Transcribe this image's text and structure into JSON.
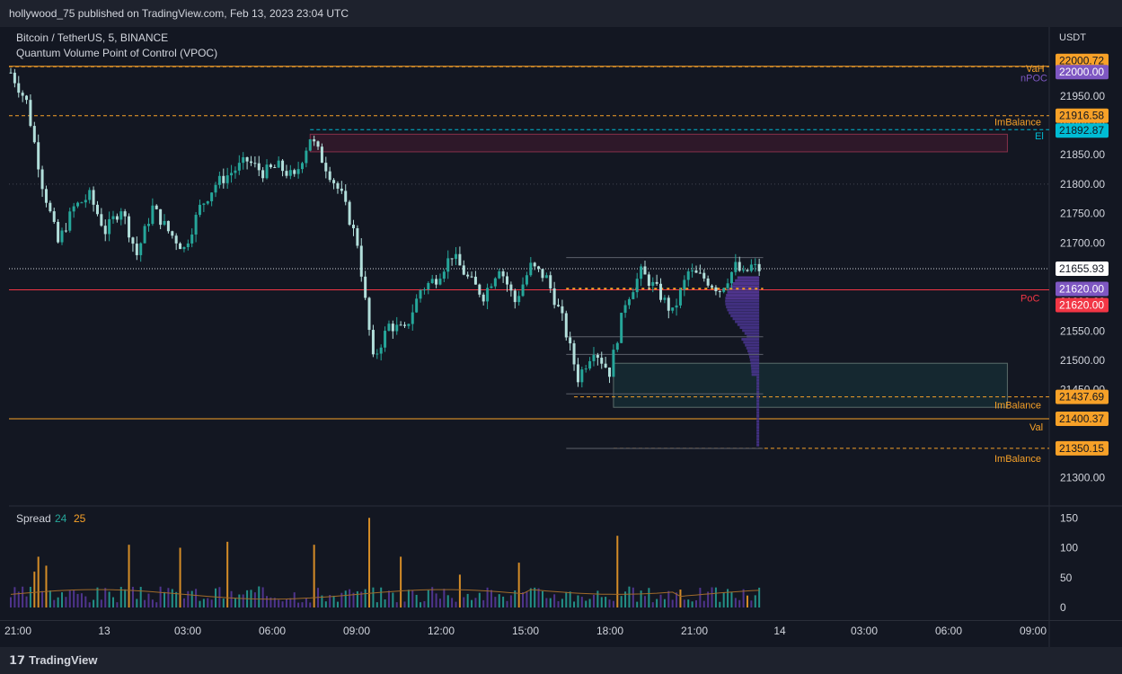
{
  "header": {
    "published": "hollywood_75 published on TradingView.com, Feb 13, 2023 23:04 UTC"
  },
  "legend": {
    "symbol": "Bitcoin / TetherUS, 5, BINANCE",
    "indicator": "Quantum Volume Point of Control (VPOC)"
  },
  "currency": "USDT",
  "footer": {
    "brand": "TradingView"
  },
  "colors": {
    "up": "#26a69a",
    "down": "#b2dfdb",
    "accent": "#f7a128",
    "poc": "#f23645",
    "vpoc": "#7e57c2",
    "cyan": "#00bcd4"
  },
  "chart_data": [
    {
      "type": "candlestick",
      "title": "Bitcoin / TetherUS, 5, BINANCE",
      "ylim": [
        21230,
        22050
      ],
      "y_ticks": [
        21300,
        21350,
        21400,
        21450,
        21500,
        21550,
        21600,
        21650,
        21700,
        21750,
        21800,
        21850,
        21900,
        21950,
        22000
      ],
      "x_ticks": [
        "21:00",
        "13",
        "03:00",
        "06:00",
        "09:00",
        "12:00",
        "15:00",
        "18:00",
        "21:00",
        "14",
        "03:00",
        "06:00",
        "09:00"
      ],
      "path_points": [
        [
          0,
          21990
        ],
        [
          4,
          21940
        ],
        [
          8,
          21800
        ],
        [
          12,
          21700
        ],
        [
          16,
          21760
        ],
        [
          20,
          21780
        ],
        [
          24,
          21720
        ],
        [
          28,
          21760
        ],
        [
          32,
          21680
        ],
        [
          36,
          21760
        ],
        [
          40,
          21720
        ],
        [
          44,
          21690
        ],
        [
          48,
          21760
        ],
        [
          52,
          21800
        ],
        [
          56,
          21820
        ],
        [
          60,
          21840
        ],
        [
          64,
          21820
        ],
        [
          68,
          21830
        ],
        [
          72,
          21810
        ],
        [
          76,
          21880
        ],
        [
          80,
          21830
        ],
        [
          84,
          21780
        ],
        [
          88,
          21700
        ],
        [
          92,
          21500
        ],
        [
          96,
          21560
        ],
        [
          100,
          21550
        ],
        [
          104,
          21620
        ],
        [
          108,
          21640
        ],
        [
          112,
          21680
        ],
        [
          116,
          21640
        ],
        [
          120,
          21610
        ],
        [
          124,
          21660
        ],
        [
          128,
          21600
        ],
        [
          132,
          21660
        ],
        [
          136,
          21640
        ],
        [
          140,
          21570
        ],
        [
          144,
          21470
        ],
        [
          148,
          21520
        ],
        [
          152,
          21480
        ],
        [
          156,
          21600
        ],
        [
          160,
          21650
        ],
        [
          164,
          21620
        ],
        [
          168,
          21580
        ],
        [
          172,
          21650
        ],
        [
          176,
          21640
        ],
        [
          180,
          21620
        ],
        [
          184,
          21660
        ],
        [
          186,
          21645
        ],
        [
          188,
          21660
        ],
        [
          190,
          21655
        ]
      ],
      "closing_price": 21655.93,
      "price_labels": [
        {
          "value": 22000.72,
          "label": "22000.72"
        },
        {
          "value": 22000.0,
          "label": "22000.00",
          "tag": "VaH"
        },
        {
          "value": 21995.0,
          "tag": "nPOC"
        },
        {
          "value": 21916.58,
          "label": "21916.58",
          "tag": "ImBalance"
        },
        {
          "value": 21892.87,
          "label": "21892.87",
          "tag": "El"
        },
        {
          "value": 21655.93,
          "label": "21655.93"
        },
        {
          "value": 21620.0,
          "label": "21620.00",
          "tag": "PoC"
        },
        {
          "value": 21437.69,
          "label": "21437.69",
          "tag": "ImBalance"
        },
        {
          "value": 21400.37,
          "label": "21400.37",
          "tag": "Val"
        },
        {
          "value": 21350.15,
          "label": "21350.15",
          "tag": "ImBalance"
        }
      ],
      "zones": [
        {
          "type": "supply",
          "from_bar": 76,
          "to_bar": 253,
          "low": 21855,
          "high": 21885
        },
        {
          "type": "demand",
          "from_bar": 153,
          "to_bar": 253,
          "low": 21420,
          "high": 21495
        }
      ]
    },
    {
      "type": "bar",
      "title": "Spread",
      "series": [
        {
          "name": "24",
          "color": "#26a69a"
        },
        {
          "name": "25",
          "color": "#f7a128"
        }
      ],
      "ylim": [
        0,
        160
      ],
      "y_ticks": [
        0,
        50,
        100,
        150
      ],
      "peaks": [
        [
          6,
          60
        ],
        [
          7,
          85
        ],
        [
          9,
          70
        ],
        [
          30,
          105
        ],
        [
          43,
          100
        ],
        [
          55,
          110
        ],
        [
          77,
          105
        ],
        [
          91,
          150
        ],
        [
          99,
          85
        ],
        [
          114,
          55
        ],
        [
          129,
          75
        ],
        [
          154,
          120
        ],
        [
          170,
          30
        ],
        [
          187,
          20
        ]
      ]
    }
  ]
}
